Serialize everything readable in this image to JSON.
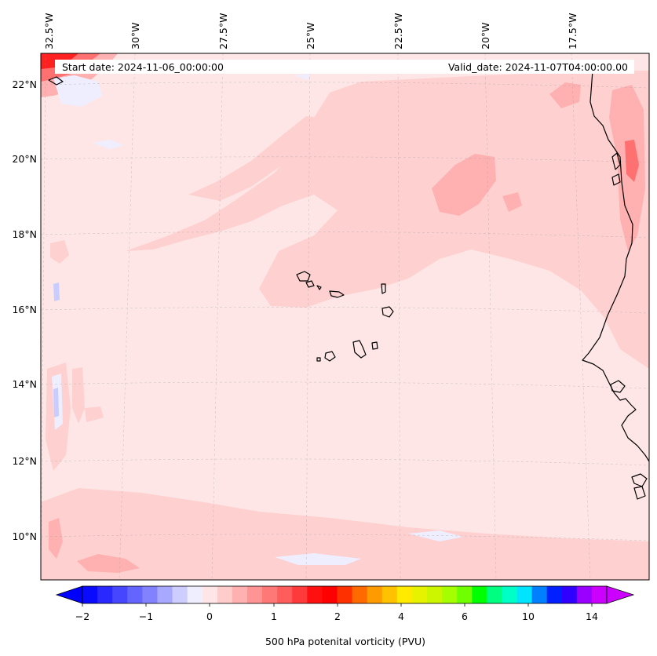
{
  "map": {
    "start_date_label": "Start date: 2024-11-06_00:00:00",
    "valid_date_label": "Valid_date: 2024-11-07T04:00:00.00",
    "lon_labels": [
      "32.5°W",
      "30°W",
      "27.5°W",
      "25°W",
      "22.5°W",
      "20°W",
      "17.5°W"
    ],
    "lat_labels": [
      "22°N",
      "20°N",
      "18°N",
      "16°N",
      "14°N",
      "12°N",
      "10°N"
    ],
    "colorbar": {
      "title": "500 hPa potenital vorticity (PVU)",
      "tick_labels": [
        "−2",
        "−1",
        "0",
        "1",
        "2",
        "4",
        "6",
        "10",
        "14"
      ],
      "colors": [
        "#0a0aff",
        "#2828ff",
        "#4646ff",
        "#6464ff",
        "#8282ff",
        "#a8a8ff",
        "#cdcdff",
        "#eeeeff",
        "#ffe6e6",
        "#ffcccc",
        "#ffb0b0",
        "#ff9494",
        "#ff7878",
        "#ff5c5c",
        "#ff3a3a",
        "#ff1010",
        "#ff0000",
        "#ff3000",
        "#ff6a00",
        "#ff9a00",
        "#ffc200",
        "#ffea00",
        "#e6f200",
        "#ccf500",
        "#a6ff00",
        "#70ff00",
        "#00ff00",
        "#00ff80",
        "#00ffc6",
        "#00e4ff",
        "#0080ff",
        "#0020ff",
        "#3000ff",
        "#9a00ff",
        "#cc00ff"
      ],
      "under_color": "#0000ff",
      "over_color": "#cc00ff"
    },
    "field_colors": {
      "background": "#ffe6e6",
      "light": "#ffd0d0",
      "medium": "#ffb0b0",
      "strong": "#ff7070",
      "max": "#ff2020",
      "negative": "#eeeeff",
      "negative_medium": "#c8ccff",
      "negative_strong": "#a0b0ff"
    }
  }
}
